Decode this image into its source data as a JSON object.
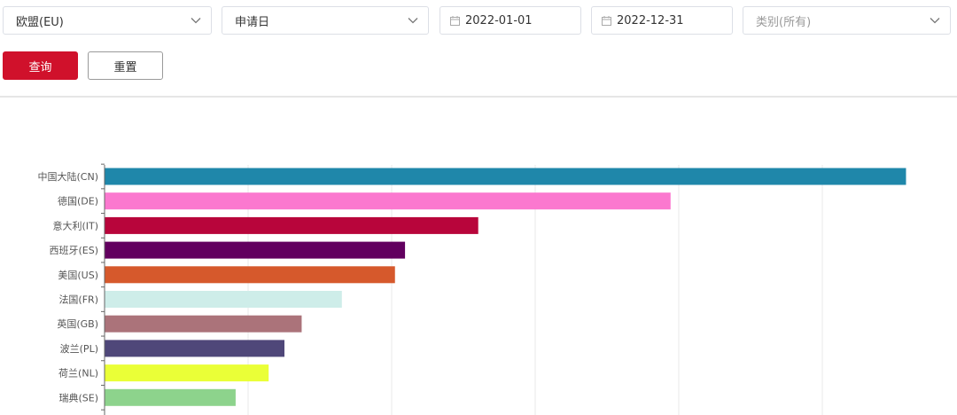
{
  "filters": {
    "region": "欧盟(EU)",
    "date_type": "申请日",
    "start_date": "2022-01-01",
    "end_date": "2022-12-31",
    "category_placeholder": "类别(所有)"
  },
  "icons": {
    "dropdown": "chevron-down-icon",
    "date": "calendar-icon"
  },
  "buttons": {
    "query": "查询",
    "reset": "重置"
  },
  "colors": {
    "primary": "#d0112b"
  },
  "chart_data": {
    "type": "bar",
    "orientation": "horizontal",
    "categories": [
      "中国大陆(CN)",
      "德国(DE)",
      "意大利(IT)",
      "西班牙(ES)",
      "美国(US)",
      "法国(FR)",
      "英国(GB)",
      "波兰(PL)",
      "荷兰(NL)",
      "瑞典(SE)"
    ],
    "values": [
      5580,
      3940,
      2600,
      2090,
      2020,
      1650,
      1370,
      1250,
      1140,
      910
    ],
    "colors": [
      "#1f87aa",
      "#fb78cf",
      "#b8053b",
      "#62005f",
      "#d6592c",
      "#ceede9",
      "#ab737a",
      "#4f4779",
      "#eaff37",
      "#8dd38c"
    ],
    "xlim": [
      0,
      6000
    ],
    "grid": true,
    "grid_axis": "x"
  }
}
